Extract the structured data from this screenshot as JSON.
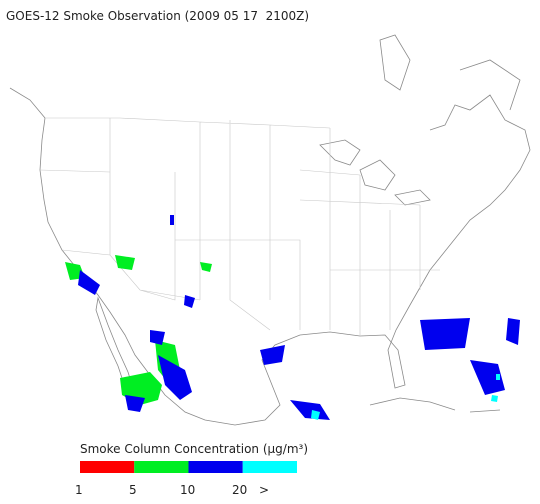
{
  "title": "GOES-12 Smoke Observation (2009 05 17  2100Z)",
  "legend": {
    "title": "Smoke Column Concentration (μg/m³)",
    "colors": [
      "#ff0000",
      "#00ee22",
      "#0000ee",
      "#00ffff"
    ],
    "labels": [
      "1",
      "5",
      "10",
      "20",
      ">"
    ]
  }
}
